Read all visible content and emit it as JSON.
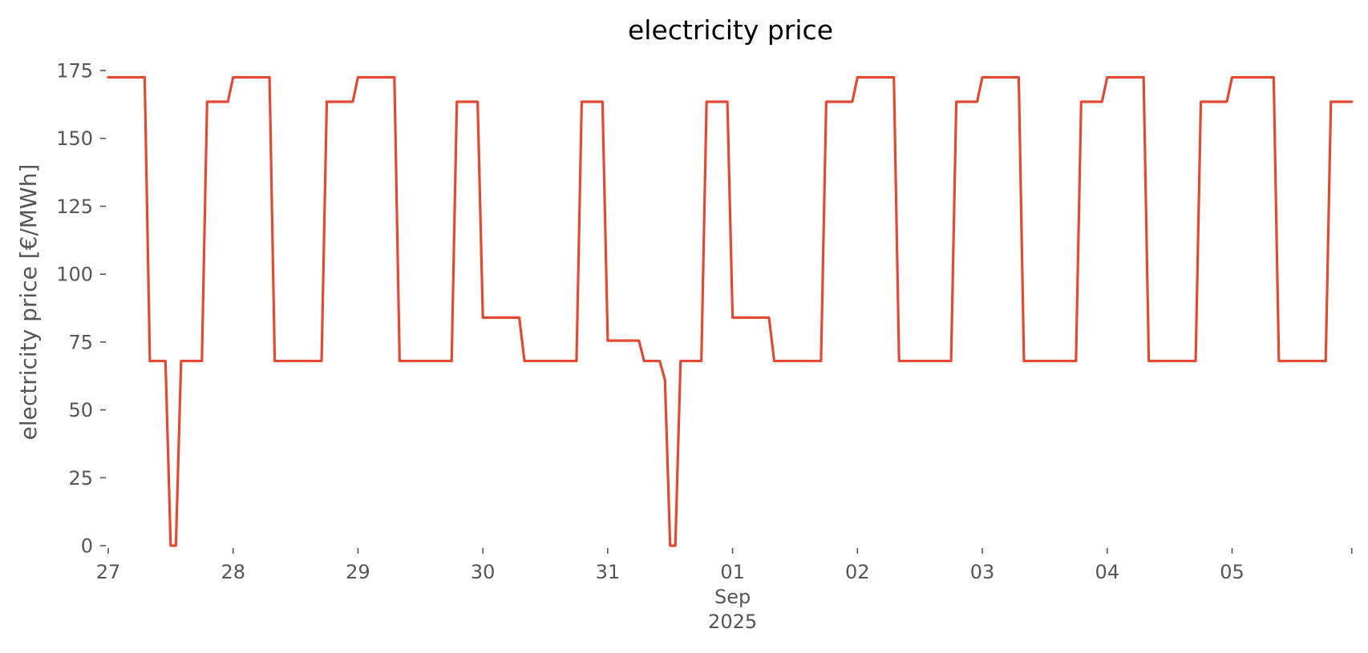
{
  "chart_data": {
    "type": "line",
    "title": "electricity price",
    "xlabel": "",
    "ylabel": "electricity price [€/MWh]",
    "ylim": [
      0,
      175
    ],
    "yticks": [
      0,
      25,
      50,
      75,
      100,
      125,
      150,
      175
    ],
    "ytick_labels": [
      "0",
      "25",
      "50",
      "75",
      "100",
      "125",
      "150",
      "175"
    ],
    "xlim": [
      "2025-08-27 00:00",
      "2025-09-05 23:00"
    ],
    "xtick_labels": [
      [
        "27"
      ],
      [
        "28"
      ],
      [
        "29"
      ],
      [
        "30"
      ],
      [
        "31"
      ],
      [
        "01",
        "Sep",
        "2025"
      ],
      [
        "02"
      ],
      [
        "03"
      ],
      [
        "04"
      ],
      [
        "05"
      ]
    ],
    "grid": false,
    "legend": "none",
    "colors": {
      "line": "#E24A33",
      "text": "#555555",
      "background": "#FFFFFF"
    },
    "series": [
      {
        "frequency": "hourly",
        "days": [
          {
            "date": "2025-08-27",
            "values": [
              172.5,
              172.5,
              172.5,
              172.5,
              172.5,
              172.5,
              172.5,
              172.5,
              68,
              68,
              68,
              68,
              0,
              0,
              68,
              68,
              68,
              68,
              68,
              163.5,
              163.5,
              163.5,
              163.5,
              163.5
            ]
          },
          {
            "date": "2025-08-28",
            "values": [
              172.5,
              172.5,
              172.5,
              172.5,
              172.5,
              172.5,
              172.5,
              172.5,
              68,
              68,
              68,
              68,
              68,
              68,
              68,
              68,
              68,
              68,
              163.5,
              163.5,
              163.5,
              163.5,
              163.5,
              163.5
            ]
          },
          {
            "date": "2025-08-29",
            "values": [
              172.5,
              172.5,
              172.5,
              172.5,
              172.5,
              172.5,
              172.5,
              172.5,
              68,
              68,
              68,
              68,
              68,
              68,
              68,
              68,
              68,
              68,
              68,
              163.5,
              163.5,
              163.5,
              163.5,
              163.5
            ]
          },
          {
            "date": "2025-08-30",
            "values": [
              84,
              84,
              84,
              84,
              84,
              84,
              84,
              84,
              68,
              68,
              68,
              68,
              68,
              68,
              68,
              68,
              68,
              68,
              68,
              163.5,
              163.5,
              163.5,
              163.5,
              163.5
            ]
          },
          {
            "date": "2025-08-31",
            "values": [
              75.5,
              75.5,
              75.5,
              75.5,
              75.5,
              75.5,
              75.5,
              68,
              68,
              68,
              68,
              61,
              0,
              0,
              68,
              68,
              68,
              68,
              68,
              163.5,
              163.5,
              163.5,
              163.5,
              163.5
            ]
          },
          {
            "date": "2025-09-01",
            "values": [
              84,
              84,
              84,
              84,
              84,
              84,
              84,
              84,
              68,
              68,
              68,
              68,
              68,
              68,
              68,
              68,
              68,
              68,
              163.5,
              163.5,
              163.5,
              163.5,
              163.5,
              163.5
            ]
          },
          {
            "date": "2025-09-02",
            "values": [
              172.5,
              172.5,
              172.5,
              172.5,
              172.5,
              172.5,
              172.5,
              172.5,
              68,
              68,
              68,
              68,
              68,
              68,
              68,
              68,
              68,
              68,
              68,
              163.5,
              163.5,
              163.5,
              163.5,
              163.5
            ]
          },
          {
            "date": "2025-09-03",
            "values": [
              172.5,
              172.5,
              172.5,
              172.5,
              172.5,
              172.5,
              172.5,
              172.5,
              68,
              68,
              68,
              68,
              68,
              68,
              68,
              68,
              68,
              68,
              68,
              163.5,
              163.5,
              163.5,
              163.5,
              163.5
            ]
          },
          {
            "date": "2025-09-04",
            "values": [
              172.5,
              172.5,
              172.5,
              172.5,
              172.5,
              172.5,
              172.5,
              172.5,
              68,
              68,
              68,
              68,
              68,
              68,
              68,
              68,
              68,
              68,
              163.5,
              163.5,
              163.5,
              163.5,
              163.5,
              163.5
            ]
          },
          {
            "date": "2025-09-05",
            "values": [
              172.5,
              172.5,
              172.5,
              172.5,
              172.5,
              172.5,
              172.5,
              172.5,
              172.5,
              68,
              68,
              68,
              68,
              68,
              68,
              68,
              68,
              68,
              68,
              163.5,
              163.5,
              163.5,
              163.5,
              163.5
            ]
          }
        ]
      }
    ]
  }
}
